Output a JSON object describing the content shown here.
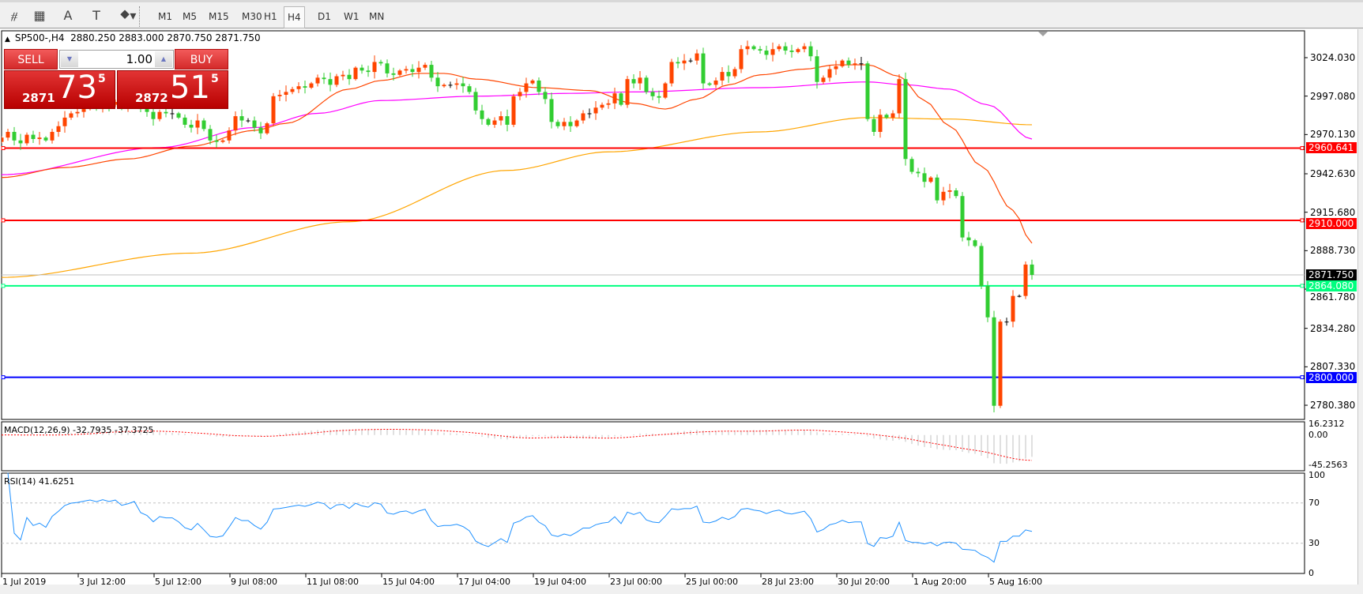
{
  "toolbar": {
    "tools": [
      {
        "icon": "elliott-wave-icon",
        "glyph": "⧣"
      },
      {
        "icon": "fibonacci-grid-icon",
        "glyph": "▦"
      },
      {
        "icon": "text-icon",
        "glyph": "A"
      },
      {
        "icon": "text-label-icon",
        "glyph": "T"
      },
      {
        "icon": "arrows-dropdown-icon",
        "glyph": "⯁▾"
      }
    ],
    "timeframes": [
      "M1",
      "M5",
      "M15",
      "M30",
      "H1",
      "H4",
      "D1",
      "W1",
      "MN"
    ],
    "active_timeframe": "H4"
  },
  "chart": {
    "symbol": "SP500-,H4",
    "ohlc": "2880.250 2883.000 2870.750 2871.750"
  },
  "trade_panel": {
    "sell_label": "SELL",
    "buy_label": "BUY",
    "lot": "1.00",
    "sell_price": {
      "small": "2871",
      "big": "73",
      "sup": "5"
    },
    "buy_price": {
      "small": "2872",
      "big": "51",
      "sup": "5"
    }
  },
  "price_axis": {
    "ticks": [
      "3024.030",
      "2997.080",
      "2970.130",
      "2942.630",
      "2915.680",
      "2888.730",
      "2861.780",
      "2834.280",
      "2807.330",
      "2780.380"
    ]
  },
  "levels": [
    {
      "price": 2960.641,
      "label": "2960.641",
      "color": "#ff0000"
    },
    {
      "price": 2910.0,
      "label": "2910.000",
      "color": "#ff0000"
    },
    {
      "price": 2864.08,
      "label": "2864.080",
      "color": "#00ff7f"
    },
    {
      "price": 2800.0,
      "label": "2800.000",
      "color": "#0000ff"
    }
  ],
  "current_price": {
    "price": 2871.75,
    "label": "2871.750",
    "color": "#000000"
  },
  "time_axis": {
    "labels": [
      "1 Jul 2019",
      "3 Jul 12:00",
      "5 Jul 12:00",
      "9 Jul 08:00",
      "11 Jul 08:00",
      "15 Jul 04:00",
      "17 Jul 04:00",
      "19 Jul 04:00",
      "23 Jul 00:00",
      "25 Jul 00:00",
      "28 Jul 23:00",
      "30 Jul 20:00",
      "1 Aug 20:00",
      "5 Aug 16:00"
    ]
  },
  "macd": {
    "label": "MACD(12,26,9) -32.7935 -37.3725",
    "axis": [
      "16.2312",
      "0.00",
      "-45.2563"
    ],
    "range": [
      -45.2563,
      16.2312
    ]
  },
  "rsi": {
    "label": "RSI(14) 41.6251",
    "axis": [
      "100",
      "70",
      "30",
      "0"
    ],
    "levels": [
      70,
      30
    ]
  },
  "colors": {
    "bull": "#ff4500",
    "bear": "#32cd32",
    "doji": "#000000",
    "ma_fast": "#ff4500",
    "ma_mid": "#ff00ff",
    "ma_slow": "#ffa500",
    "macd_hist": "#c0c0c0",
    "macd_signal": "#ff0000",
    "rsi_line": "#1e90ff"
  },
  "chart_data": {
    "type": "candlestick",
    "first_open": 2965,
    "closes": [
      2968,
      2972,
      2966,
      2964,
      2970,
      2967,
      2968,
      2966,
      2972,
      2976,
      2982,
      2985,
      2986,
      2988,
      2990,
      2989,
      2992,
      2991,
      2993,
      2990,
      2992,
      2995,
      2988,
      2986,
      2981,
      2986,
      2985,
      2985,
      2982,
      2977,
      2975,
      2980,
      2974,
      2966,
      2965,
      2966,
      2973,
      2983,
      2980,
      2980,
      2975,
      2971,
      2978,
      2997,
      2998,
      3000,
      3002,
      3004,
      3003,
      3006,
      3010,
      3009,
      3005,
      3011,
      3012,
      3009,
      3017,
      3015,
      3014,
      3021,
      3020,
      3013,
      3012,
      3015,
      3016,
      3014,
      3017,
      3019,
      3010,
      3004,
      3005,
      3005,
      3006,
      3004,
      3000,
      2987,
      2981,
      2977,
      2980,
      2983,
      2977,
      2997,
      3000,
      3006,
      3008,
      3000,
      2995,
      2979,
      2976,
      2979,
      2976,
      2980,
      2985,
      2985,
      2989,
      2991,
      2992,
      2999,
      2991,
      3009,
      3006,
      3010,
      3000,
      2997,
      2996,
      3006,
      3021,
      3020,
      3022,
      3022,
      3027,
      3006,
      3005,
      3008,
      3014,
      3011,
      3016,
      3030,
      3032,
      3030,
      3029,
      3026,
      3030,
      3032,
      3029,
      3028,
      3030,
      3032,
      3025,
      3007,
      3010,
      3016,
      3018,
      3022,
      3019,
      3020,
      3020,
      2981,
      2972,
      2984,
      2982,
      2985,
      3009,
      2953,
      2944,
      2943,
      2937,
      2940,
      2924,
      2930,
      2931,
      2927,
      2898,
      2896,
      2892,
      2864,
      2842,
      2780,
      2839,
      2839,
      2857,
      2857,
      2879,
      2871.75
    ],
    "ma_fast": [
      [
        0,
        2940
      ],
      [
        10,
        2947
      ],
      [
        20,
        2953
      ],
      [
        30,
        2962
      ],
      [
        40,
        2973
      ],
      [
        45,
        2978
      ],
      [
        55,
        3002
      ],
      [
        60,
        3008
      ],
      [
        66,
        3013
      ],
      [
        70,
        3013
      ],
      [
        75,
        3009
      ],
      [
        85,
        3003
      ],
      [
        93,
        3001
      ],
      [
        100,
        2992
      ],
      [
        105,
        2988
      ],
      [
        110,
        2995
      ],
      [
        115,
        3005
      ],
      [
        120,
        3012
      ],
      [
        127,
        3016
      ],
      [
        132,
        3019
      ],
      [
        137,
        3019
      ],
      [
        142,
        3011
      ],
      [
        146,
        2994
      ],
      [
        150,
        2976
      ],
      [
        155,
        2948
      ],
      [
        160,
        2917
      ],
      [
        163,
        2894
      ]
    ],
    "ma_mid": [
      [
        0,
        2942
      ],
      [
        25,
        2961
      ],
      [
        40,
        2975
      ],
      [
        50,
        2985
      ],
      [
        60,
        2994
      ],
      [
        75,
        2997
      ],
      [
        90,
        2999
      ],
      [
        100,
        3000
      ],
      [
        120,
        3003
      ],
      [
        137,
        3007
      ],
      [
        143,
        3005
      ],
      [
        150,
        3002
      ],
      [
        156,
        2991
      ],
      [
        163,
        2967
      ]
    ],
    "ma_slow": [
      [
        0,
        2870
      ],
      [
        30,
        2887
      ],
      [
        55,
        2909
      ],
      [
        80,
        2945
      ],
      [
        96,
        2958
      ],
      [
        120,
        2972
      ],
      [
        137,
        2982
      ],
      [
        150,
        2981
      ],
      [
        163,
        2977
      ]
    ],
    "price_range": [
      2780.38,
      3024.03
    ]
  }
}
